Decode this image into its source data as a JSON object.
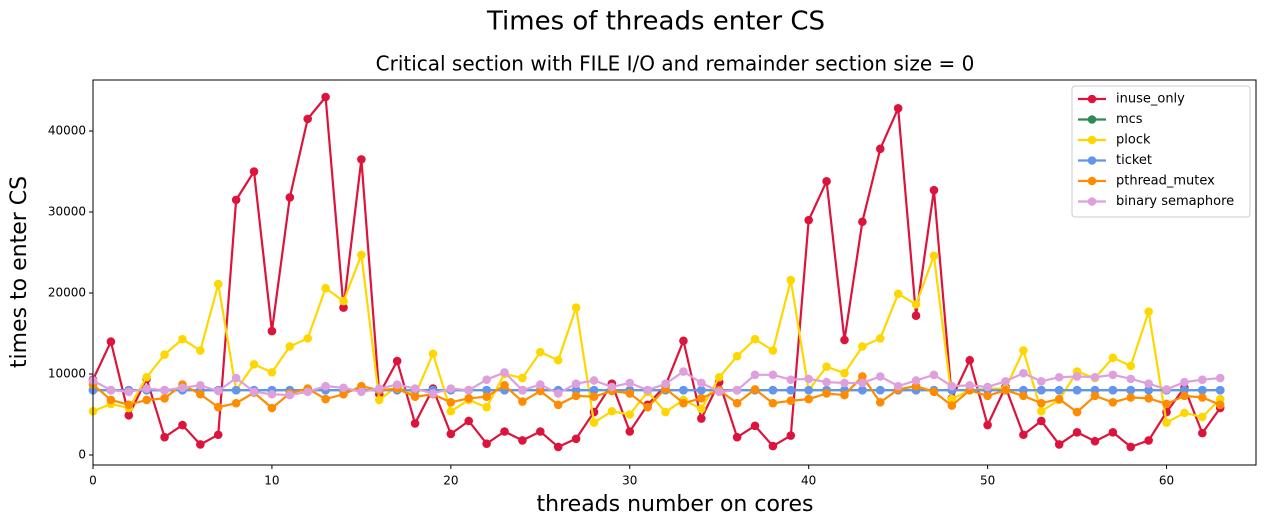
{
  "chart_data": {
    "type": "line",
    "suptitle": "Times of threads enter CS",
    "title": "Critical section with FILE I/O and remainder section size = 0",
    "xlabel": "threads number on cores",
    "ylabel": "times to enter CS",
    "x": [
      0,
      1,
      2,
      3,
      4,
      5,
      6,
      7,
      8,
      9,
      10,
      11,
      12,
      13,
      14,
      15,
      16,
      17,
      18,
      19,
      20,
      21,
      22,
      23,
      24,
      25,
      26,
      27,
      28,
      29,
      30,
      31,
      32,
      33,
      34,
      35,
      36,
      37,
      38,
      39,
      40,
      41,
      42,
      43,
      44,
      45,
      46,
      47,
      48,
      49,
      50,
      51,
      52,
      53,
      54,
      55,
      56,
      57,
      58,
      59,
      60,
      61,
      62,
      63
    ],
    "xlim": [
      0,
      65
    ],
    "xticks": [
      0,
      10,
      20,
      30,
      40,
      50,
      60
    ],
    "ylim": [
      -1235,
      46300
    ],
    "yticks": [
      0,
      10000,
      20000,
      30000,
      40000
    ],
    "legend": "upper right",
    "series": [
      {
        "name": "inuse_only",
        "color": "#dc143c",
        "values": [
          9300,
          14000,
          4900,
          9400,
          2200,
          3700,
          1300,
          2500,
          31500,
          35000,
          15300,
          31800,
          41500,
          44200,
          18200,
          36500,
          7500,
          11600,
          3900,
          8200,
          2600,
          4200,
          1400,
          2900,
          1800,
          2900,
          1000,
          2000,
          5300,
          8800,
          2900,
          6200,
          8600,
          14100,
          4500,
          9000,
          2200,
          3600,
          1100,
          2400,
          29000,
          33800,
          14200,
          28800,
          37800,
          42800,
          17200,
          32700,
          7000,
          11700,
          3700,
          8400,
          2500,
          4200,
          1300,
          2800,
          1700,
          2800,
          1000,
          1800,
          5300,
          8300,
          2700,
          5800
        ]
      },
      {
        "name": "mcs",
        "color": "#2e8b57",
        "values": [
          8000,
          8000,
          8000,
          8000,
          8000,
          8000,
          8000,
          8000,
          8000,
          8000,
          8000,
          8000,
          8000,
          8000,
          8000,
          8000,
          8000,
          8000,
          8000,
          8000,
          8000,
          8000,
          8000,
          8000,
          8000,
          8000,
          8000,
          8000,
          8000,
          8000,
          8000,
          8000,
          8000,
          8000,
          8000,
          8000,
          8000,
          8000,
          8000,
          8000,
          8000,
          8000,
          8000,
          8000,
          8000,
          8000,
          8000,
          8000,
          8000,
          8000,
          8000,
          8000,
          8000,
          8000,
          8000,
          8000,
          8000,
          8000,
          8000,
          8000,
          8000,
          8000,
          8000,
          8000
        ]
      },
      {
        "name": "plock",
        "color": "#ffd700",
        "values": [
          5400,
          6300,
          5800,
          9600,
          12400,
          14300,
          12900,
          21100,
          8000,
          11200,
          10200,
          13400,
          14400,
          20600,
          19000,
          24700,
          6800,
          8500,
          7400,
          12500,
          5400,
          6800,
          5900,
          10000,
          9500,
          12700,
          11700,
          18200,
          4000,
          5400,
          5000,
          7800,
          5300,
          6800,
          5700,
          9600,
          12200,
          14300,
          12900,
          21600,
          8000,
          10900,
          10100,
          13400,
          14400,
          19900,
          18600,
          24600,
          6900,
          8000,
          8200,
          8200,
          12900,
          5400,
          6800,
          10300,
          9500,
          12000,
          11000,
          17700,
          4000,
          5200,
          4700,
          6900
        ]
      },
      {
        "name": "ticket",
        "color": "#6495ed",
        "values": [
          8000,
          8000,
          8000,
          8000,
          8000,
          8000,
          8000,
          8000,
          8000,
          8000,
          8000,
          8000,
          8000,
          8000,
          8000,
          8000,
          8000,
          8000,
          8000,
          8000,
          8000,
          8000,
          8000,
          8000,
          8000,
          8000,
          8000,
          8000,
          8000,
          8000,
          8000,
          8000,
          8000,
          8000,
          8000,
          8000,
          8000,
          8000,
          8000,
          8000,
          8000,
          8000,
          8000,
          8000,
          8000,
          8000,
          8000,
          8000,
          8000,
          8000,
          8000,
          8000,
          8000,
          8000,
          8000,
          8000,
          8000,
          8000,
          8000,
          8000,
          8000,
          8000,
          8000,
          8000
        ]
      },
      {
        "name": "pthread_mutex",
        "color": "#ff8c00",
        "values": [
          8700,
          6800,
          6200,
          6800,
          7000,
          8700,
          7500,
          5900,
          6400,
          7700,
          5800,
          7600,
          8200,
          6900,
          7500,
          8500,
          8000,
          8200,
          7200,
          7500,
          6500,
          7000,
          7200,
          8600,
          6600,
          7900,
          6200,
          7300,
          7200,
          7900,
          7600,
          5900,
          8200,
          6400,
          7000,
          8000,
          6400,
          8100,
          6400,
          6700,
          6900,
          7600,
          7400,
          9700,
          6500,
          8100,
          8500,
          7800,
          6100,
          8000,
          7300,
          8000,
          7300,
          6400,
          6900,
          5300,
          7300,
          6500,
          7100,
          7000,
          6300,
          7300,
          7100,
          6200
        ]
      },
      {
        "name": "binary semaphore",
        "color": "#dda0dd",
        "values": [
          9200,
          8000,
          7800,
          8200,
          8000,
          8300,
          8600,
          7900,
          9500,
          7800,
          7500,
          7400,
          7800,
          8500,
          8300,
          7800,
          8200,
          8700,
          8200,
          7600,
          8200,
          8000,
          9300,
          10200,
          8000,
          8700,
          7600,
          8800,
          9200,
          8400,
          8900,
          8000,
          8800,
          10300,
          8900,
          7800,
          8000,
          9900,
          9900,
          9300,
          9400,
          9000,
          8900,
          8900,
          9700,
          8500,
          9200,
          9900,
          8500,
          8600,
          8400,
          9100,
          10100,
          9100,
          9600,
          9700,
          9600,
          9900,
          9400,
          8800,
          8100,
          9000,
          9300,
          9500
        ]
      }
    ]
  }
}
